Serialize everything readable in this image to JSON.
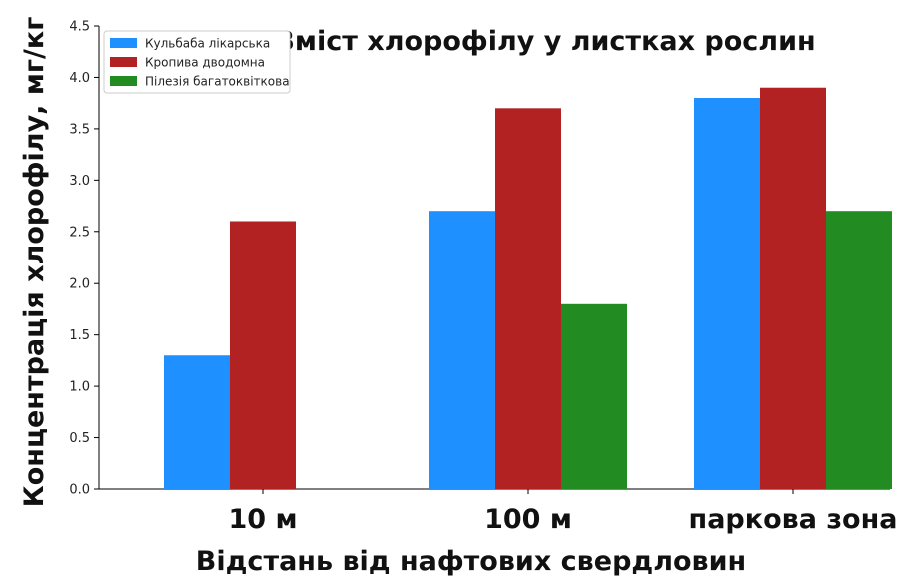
{
  "chart_data": {
    "type": "bar",
    "title": "Вміст хлорофілу у листках рослин",
    "xlabel": "Відстань від нафтових свердловин",
    "ylabel": "Концентрація хлорофілу, мг/кг",
    "categories": [
      "10 м",
      "100 м",
      "паркова зона"
    ],
    "series": [
      {
        "name": "Кульбаба лікарська",
        "color": "#1E90FF",
        "values": [
          1.3,
          2.7,
          3.8
        ]
      },
      {
        "name": "Кропива дводомна",
        "color": "#B22222",
        "values": [
          2.6,
          3.7,
          3.9
        ]
      },
      {
        "name": "Пілезія багатоквіткова",
        "color": "#228B22",
        "values": [
          null,
          1.8,
          2.7
        ]
      }
    ],
    "ylim": [
      0,
      4.5
    ],
    "yticks": [
      "0.0",
      "0.5",
      "1.0",
      "1.5",
      "2.0",
      "2.5",
      "3.0",
      "3.5",
      "4.0",
      "4.5"
    ],
    "grid": false,
    "legend_position": "top-left"
  }
}
